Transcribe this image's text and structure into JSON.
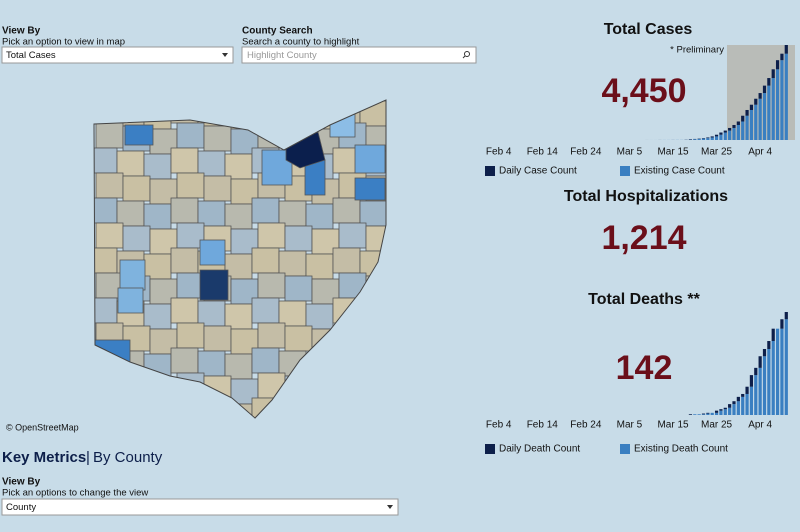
{
  "filters": {
    "view_by": {
      "label": "View By",
      "hint": "Pick an option to view in map",
      "selected": "Total Cases"
    },
    "county_search": {
      "label": "County Search",
      "hint": "Search a county to highlight",
      "placeholder": "Highlight County"
    }
  },
  "map": {
    "attribution": "© OpenStreetMap"
  },
  "key_metrics": {
    "title": "Key Metrics",
    "separator": "|",
    "subtitle": "By County",
    "view_by": {
      "label": "View By",
      "hint": "Pick an options to change the view",
      "selected": "County"
    }
  },
  "metrics": [
    {
      "title": "Total Cases",
      "value": "4,450",
      "note": "* Preliminary"
    },
    {
      "title": "Total Hospitalizations",
      "value": "1,214"
    },
    {
      "title": "Total Deaths **",
      "value": "142"
    }
  ],
  "charts": [
    {
      "type": "bar",
      "xlim": [
        -2,
        68
      ],
      "xticks": [
        {
          "value": 0,
          "label": "Feb 4"
        },
        {
          "value": 10,
          "label": "Feb 14"
        },
        {
          "value": 20,
          "label": "Feb 24"
        },
        {
          "value": 30,
          "label": "Mar 5"
        },
        {
          "value": 40,
          "label": "Mar 15"
        },
        {
          "value": 50,
          "label": "Mar 25"
        },
        {
          "value": 60,
          "label": "Apr 4"
        }
      ],
      "x": [
        34,
        35,
        36,
        37,
        38,
        39,
        40,
        41,
        42,
        43,
        44,
        45,
        46,
        47,
        48,
        49,
        50,
        51,
        52,
        53,
        54,
        55,
        56,
        57,
        58,
        59,
        60,
        61,
        62,
        63,
        64,
        65,
        66
      ],
      "series": [
        {
          "name": "Existing Case Count",
          "color": "#3a7fc1",
          "values": [
            0,
            1,
            1,
            1,
            3,
            3,
            3,
            5,
            5,
            5,
            13,
            37,
            50,
            67,
            88,
            119,
            169,
            247,
            351,
            442,
            564,
            704,
            867,
            1137,
            1406,
            1653,
            1933,
            2199,
            2547,
            2902,
            3312,
            3739,
            4043
          ]
        },
        {
          "name": "Daily Case Count",
          "color": "#0d1f4a",
          "values": [
            1,
            0,
            0,
            2,
            0,
            0,
            2,
            0,
            0,
            8,
            24,
            13,
            17,
            21,
            31,
            50,
            78,
            104,
            91,
            122,
            140,
            163,
            270,
            269,
            247,
            280,
            266,
            348,
            355,
            410,
            427,
            304,
            407
          ]
        }
      ],
      "legend_order": [
        1,
        0
      ]
    },
    {
      "type": "bar",
      "xlim": [
        -2,
        68
      ],
      "xticks": [
        {
          "value": 0,
          "label": "Feb 4"
        },
        {
          "value": 10,
          "label": "Feb 14"
        },
        {
          "value": 20,
          "label": "Feb 24"
        },
        {
          "value": 30,
          "label": "Mar 5"
        },
        {
          "value": 40,
          "label": "Mar 15"
        },
        {
          "value": 50,
          "label": "Mar 25"
        },
        {
          "value": 60,
          "label": "Apr 4"
        }
      ],
      "x": [
        44,
        45,
        46,
        47,
        48,
        49,
        50,
        51,
        52,
        53,
        54,
        55,
        56,
        57,
        58,
        59,
        60,
        61,
        62,
        63,
        64,
        65,
        66
      ],
      "series": [
        {
          "name": "Existing Death Count",
          "color": "#3a7fc1",
          "values": [
            0,
            1,
            1,
            1,
            2,
            3,
            3,
            6,
            8,
            10,
            15,
            19,
            25,
            29,
            39,
            55,
            65,
            81,
            91,
            102,
            119,
            119,
            132
          ]
        },
        {
          "name": "Daily Death Count",
          "color": "#0d1f4a",
          "values": [
            1,
            0,
            0,
            1,
            1,
            0,
            3,
            2,
            2,
            5,
            4,
            6,
            4,
            10,
            16,
            10,
            16,
            10,
            11,
            17,
            0,
            13,
            10
          ]
        }
      ],
      "legend_order": [
        1,
        0
      ]
    }
  ]
}
